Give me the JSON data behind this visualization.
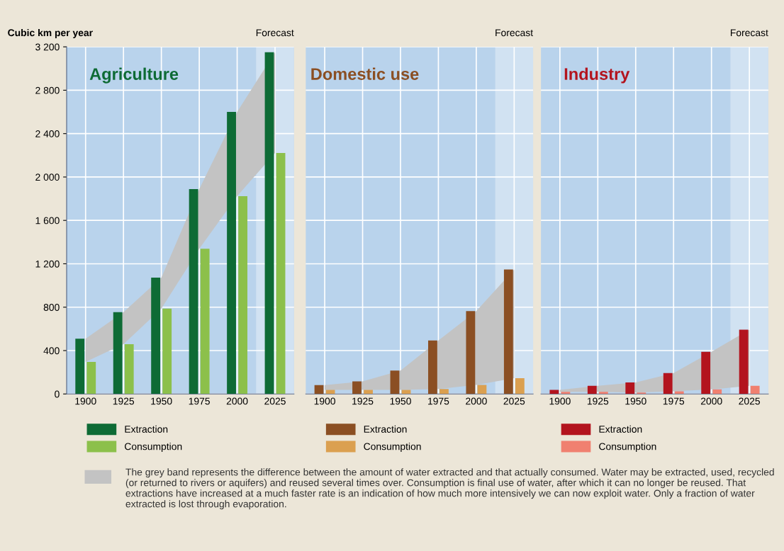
{
  "chart_data": [
    {
      "type": "bar",
      "title": "Agriculture",
      "ylabel": "Cubic km per year",
      "categories": [
        "1900",
        "1925",
        "1950",
        "1975",
        "2000",
        "2025"
      ],
      "ylim": [
        0,
        3200
      ],
      "yticks": [
        0,
        400,
        800,
        {
          "value": 1200,
          "label": "1 200"
        },
        {
          "value": 1600,
          "label": "1 600"
        },
        {
          "value": 2000,
          "label": "2 000"
        },
        {
          "value": 2400,
          "label": "2 400"
        },
        {
          "value": 2800,
          "label": "2 800"
        },
        {
          "value": 3200,
          "label": "3 200"
        }
      ],
      "grid": true,
      "legend": "bottom",
      "series": [
        {
          "type": "area",
          "color": "#c3c3c3",
          "values": [
            510,
            755,
            1072,
            1889,
            2600,
            3150
          ]
        },
        {
          "name": "Extraction",
          "color": "#0e6b35",
          "values": [
            510,
            755,
            1072,
            1889,
            2600,
            3150
          ]
        },
        {
          "name": "Consumption",
          "color": "#8cc04b",
          "values": [
            296,
            458,
            787,
            1338,
            1824,
            2222
          ]
        }
      ],
      "bands": [
        {
          "axis": "x",
          "from": "2025",
          "to": "2025",
          "label": "Forecast",
          "color": "#ffffff"
        }
      ],
      "annotations": [
        "The grey band represents the difference between the amount of water extracted and that actually consumed. Water may be extracted, used, recycled (or returned to rivers or aquifers) and reused several times over. Consumption is final use of water, after which it can no longer be reused. That extractions have increased at a much faster rate is an indication of how much more intensively we can now exploit water. Only a fraction of water extracted is lost through evaporation."
      ]
    },
    {
      "type": "bar",
      "title": "Domestic use",
      "categories": [
        "1900",
        "1925",
        "1950",
        "1975",
        "2000",
        "2025"
      ],
      "ylim": [
        0,
        3200
      ],
      "yticks": [
        0,
        400,
        800,
        1200,
        1600,
        2000,
        2400,
        2800,
        3200
      ],
      "grid": true,
      "legend": "bottom",
      "tick_labels": "x",
      "series": [
        {
          "type": "area",
          "color": "#c3c3c3",
          "values": [
            81,
            116,
            215,
            493,
            764,
            1148
          ]
        },
        {
          "name": "Extraction",
          "color": "#8b4f23",
          "values": [
            81,
            116,
            215,
            493,
            764,
            1148
          ]
        },
        {
          "name": "Consumption",
          "color": "#dba050",
          "values": [
            37,
            37,
            37,
            46,
            83,
            146
          ]
        }
      ],
      "bands": [
        {
          "axis": "x",
          "from": "2025",
          "to": "2025",
          "label": "Forecast",
          "color": "#ffffff"
        }
      ]
    },
    {
      "type": "bar",
      "title": "Industry",
      "categories": [
        "1900",
        "1925",
        "1950",
        "1975",
        "2000",
        "2025"
      ],
      "ylim": [
        0,
        3200
      ],
      "yticks": [
        0,
        400,
        800,
        1200,
        1600,
        2000,
        2400,
        2800,
        3200
      ],
      "grid": true,
      "legend": "bottom",
      "tick_labels": "x",
      "series": [
        {
          "type": "area",
          "color": "#c3c3c3",
          "values": [
            37,
            76,
            106,
            192,
            389,
            593
          ]
        },
        {
          "name": "Extraction",
          "color": "#b3141e",
          "values": [
            37,
            76,
            106,
            192,
            389,
            593
          ]
        },
        {
          "name": "Consumption",
          "color": "#f08070",
          "values": [
            19,
            19,
            14,
            25,
            42,
            76
          ]
        }
      ],
      "bands": [
        {
          "axis": "x",
          "from": "2025",
          "to": "2025",
          "label": "Forecast",
          "color": "#ffffff"
        }
      ]
    }
  ]
}
